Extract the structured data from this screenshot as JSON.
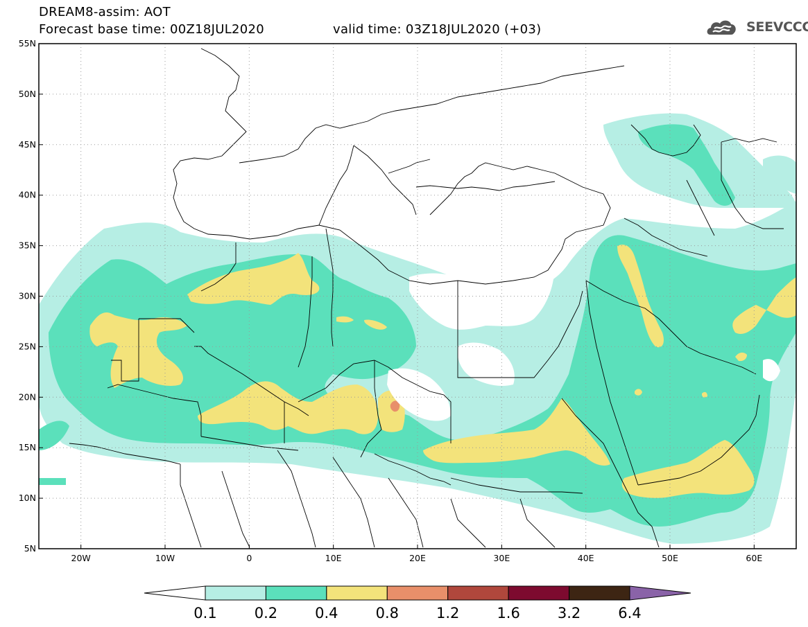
{
  "header": {
    "line1": "DREAM8-assim: AOT",
    "line2_left": "Forecast base time: 00Z18JUL2020",
    "line2_right": "valid time: 03Z18JUL2020 (+03)",
    "logo_text": "SEEVCCC"
  },
  "map": {
    "lon_labels": [
      "20W",
      "10W",
      "0",
      "10E",
      "20E",
      "30E",
      "40E",
      "50E",
      "60E"
    ],
    "lat_labels": [
      "55N",
      "50N",
      "45N",
      "40N",
      "35N",
      "30N",
      "25N",
      "20N",
      "15N",
      "10N",
      "5N"
    ],
    "lon_range": [
      -25,
      65
    ],
    "lat_range": [
      5,
      55
    ]
  },
  "colorbar": {
    "labels": [
      "0.1",
      "0.2",
      "0.4",
      "0.8",
      "1.2",
      "1.6",
      "3.2",
      "6.4"
    ],
    "colors": {
      "below_0.1": "#ffffff",
      "0.1-0.2": "#b6eee4",
      "0.2-0.4": "#5be0bb",
      "0.4-0.8": "#f3e37b",
      "0.8-1.2": "#e88f6a",
      "1.2-1.6": "#b0473c",
      "1.6-3.2": "#7d0a2f",
      "3.2-6.4": "#3d2513",
      "above_6.4": "#8a63a8"
    }
  },
  "colors": {
    "aot_0_1_0_2": "#b6eee4",
    "aot_0_2_0_4": "#5be0bb",
    "aot_0_4_0_8": "#f3e37b",
    "aot_0_8_1_2": "#e88f6a",
    "frame": "#000000",
    "borders": "#000000",
    "grid": "#9a9a9a",
    "logo": "#555555"
  },
  "icons": [
    "cloud-logo-icon"
  ]
}
